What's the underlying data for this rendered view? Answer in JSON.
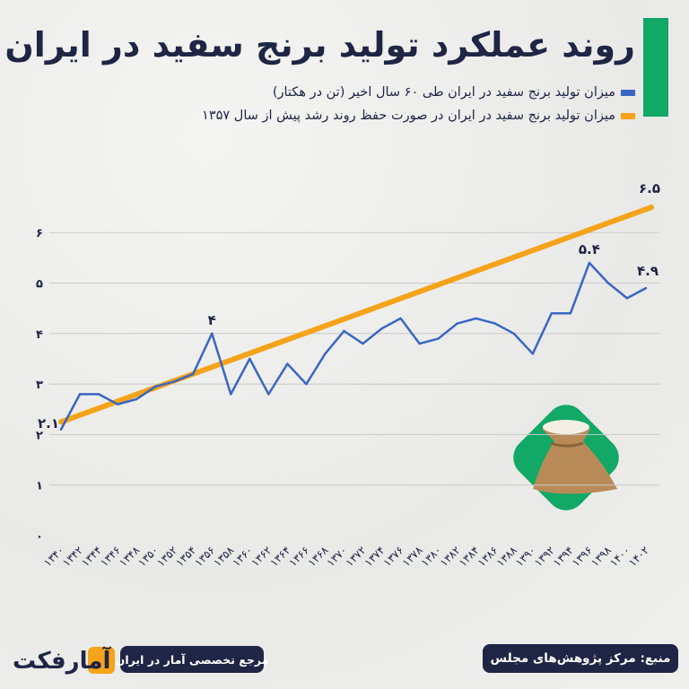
{
  "title": "روند عملکرد تولید برنج سفید در ایران",
  "colors": {
    "accent": "#12a866",
    "title": "#1f2544",
    "blue_series": "#3a66c4",
    "orange_series": "#f5a31a"
  },
  "footer": {
    "source": "منبع: مرکز پژوهش‌های مجلس",
    "tagline": "مرجع تخصصی آمار در ایران",
    "logo_text": "آمارفکت"
  },
  "icon": "rice-sack-icon",
  "chart_data": {
    "type": "line",
    "title": "روند عملکرد تولید برنج سفید در ایران",
    "xlabel": "",
    "ylabel": "",
    "ylim": [
      0,
      6
    ],
    "grid": true,
    "legend_position": "top-right",
    "y_ticks": [
      "۰",
      "۱",
      "۲",
      "۳",
      "۴",
      "۵",
      "۶"
    ],
    "x_tick_labels": [
      "۱۳۴۰",
      "۱۳۴۲",
      "۱۳۴۴",
      "۱۳۴۶",
      "۱۳۴۸",
      "۱۳۵۰",
      "۱۳۵۲",
      "۱۳۵۴",
      "۱۳۵۶",
      "۱۳۵۸",
      "۱۳۶۰",
      "۱۳۶۲",
      "۱۳۶۴",
      "۱۳۶۶",
      "۱۳۶۸",
      "۱۳۷۰",
      "۱۳۷۲",
      "۱۳۷۴",
      "۱۳۷۶",
      "۱۳۷۸",
      "۱۳۸۰",
      "۱۳۸۲",
      "۱۳۸۴",
      "۱۳۸۶",
      "۱۳۸۸",
      "۱۳۹۰",
      "۱۳۹۲",
      "۱۳۹۴",
      "۱۳۹۶",
      "۱۳۹۸",
      "۱۴۰۰",
      "۱۴۰۲"
    ],
    "x": [
      1340,
      1342,
      1344,
      1346,
      1348,
      1350,
      1352,
      1354,
      1356,
      1358,
      1360,
      1362,
      1364,
      1366,
      1368,
      1370,
      1372,
      1374,
      1376,
      1378,
      1380,
      1382,
      1384,
      1386,
      1388,
      1390,
      1392,
      1394,
      1396,
      1398,
      1400,
      1402
    ],
    "series": [
      {
        "name": "میزان تولید برنج سفید در ایران طی ۶۰ سال اخیر (تن در هکتار)",
        "color": "#3a66c4",
        "values": [
          2.1,
          2.8,
          2.8,
          2.6,
          2.7,
          2.95,
          3.05,
          3.2,
          4.0,
          2.8,
          3.5,
          2.8,
          3.4,
          3.0,
          3.6,
          4.05,
          3.8,
          4.1,
          4.3,
          3.8,
          3.9,
          4.2,
          4.3,
          4.2,
          4.0,
          3.6,
          4.4,
          4.4,
          5.4,
          5.0,
          4.7,
          4.9
        ]
      },
      {
        "name": "میزان تولید برنج سفید در ایران در صورت حفظ روند رشد پیش از سال ۱۳۵۷",
        "color": "#f5a31a",
        "start": {
          "x": 1340,
          "y": 2.25
        },
        "end": {
          "x": 1402,
          "y": 6.5
        }
      }
    ],
    "annotations": [
      {
        "x": 1340,
        "y": 2.1,
        "text": "۲.۱"
      },
      {
        "x": 1356,
        "y": 4.0,
        "text": "۴"
      },
      {
        "x": 1396,
        "y": 5.4,
        "text": "۵.۴"
      },
      {
        "x": 1402,
        "y": 4.9,
        "text": "۴.۹"
      },
      {
        "x": 1402,
        "y": 6.5,
        "text": "۶.۵"
      }
    ]
  }
}
